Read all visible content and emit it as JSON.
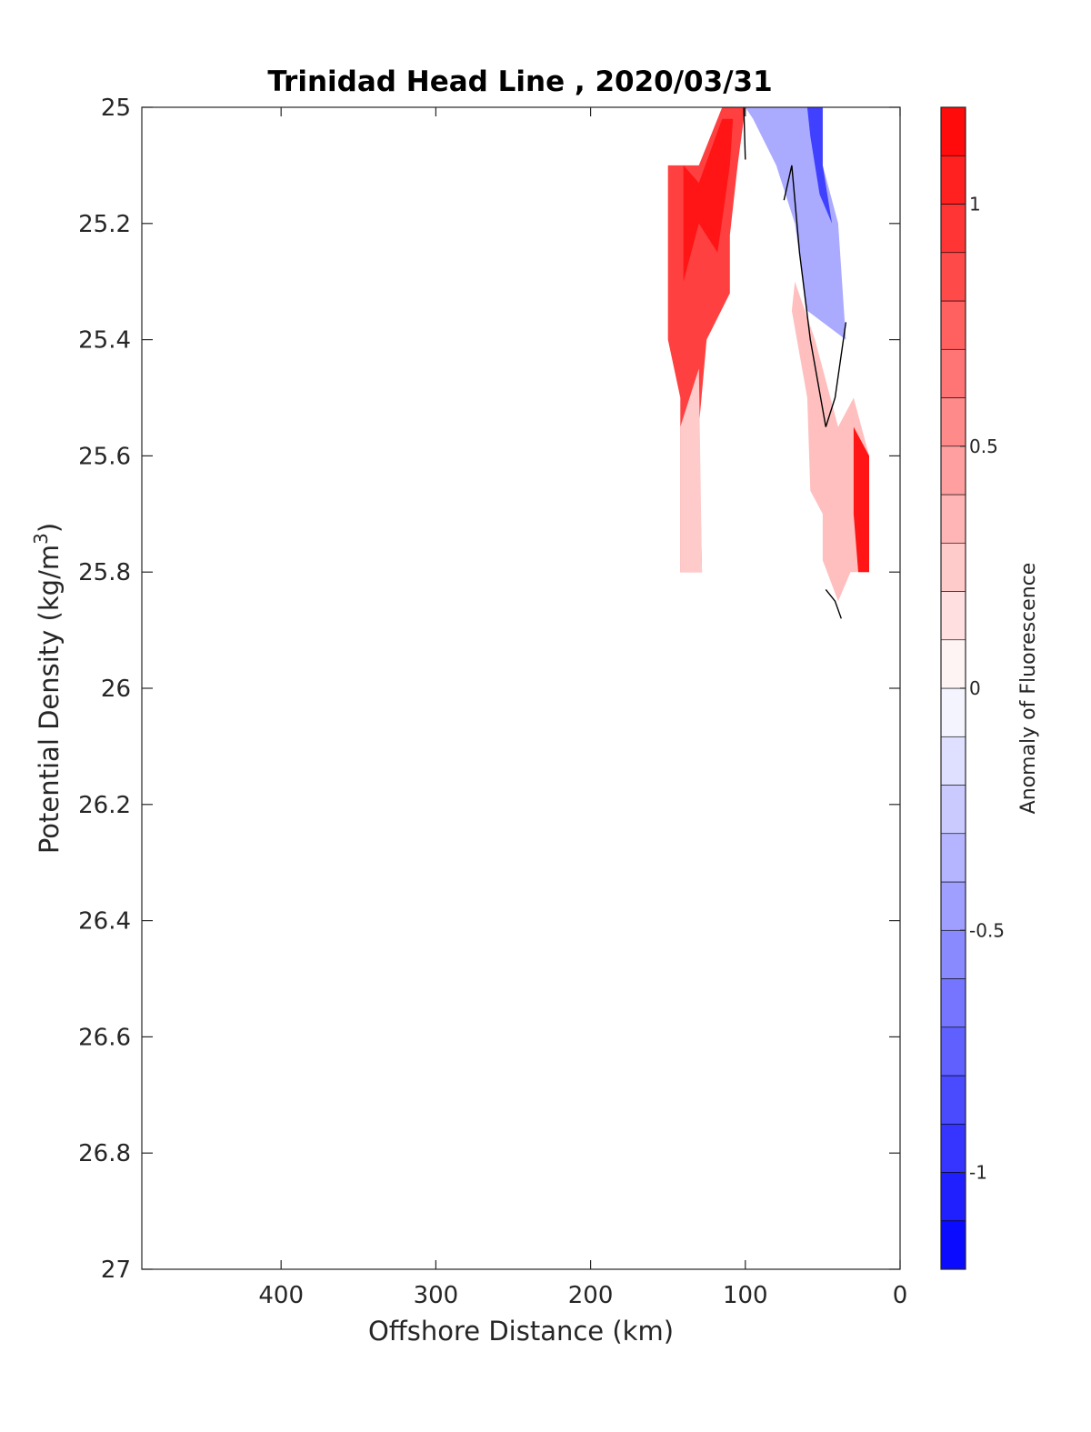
{
  "chart_data": {
    "type": "contour",
    "title": "Trinidad Head Line , 2020/03/31",
    "xlabel": "Offshore Distance (km)",
    "ylabel_main": "Potential Density (kg/m",
    "ylabel_sup": "3",
    "ylabel_tail": ")",
    "x_axis": {
      "lim": [
        490,
        0
      ],
      "reversed": true,
      "ticks": [
        400,
        300,
        200,
        100,
        0
      ],
      "tick_labels": [
        "400",
        "300",
        "200",
        "100",
        "0"
      ]
    },
    "y_axis": {
      "lim": [
        25,
        27
      ],
      "reversed": true,
      "ticks": [
        25,
        25.2,
        25.4,
        25.6,
        25.8,
        26,
        26.2,
        26.4,
        26.6,
        26.8,
        27
      ],
      "tick_labels": [
        "25",
        "25.2",
        "25.4",
        "25.6",
        "25.8",
        "26",
        "26.2",
        "26.4",
        "26.6",
        "26.8",
        "27"
      ]
    },
    "grid": false,
    "colormap": "blue-white-red",
    "colorbar": {
      "label": "Anomaly of Fluorescence",
      "range": [
        -1.2,
        1.2
      ],
      "step": 0.1,
      "ticks": [
        -1,
        -0.5,
        0,
        0.5,
        1
      ],
      "tick_labels": [
        "-1",
        "-0.5",
        "0",
        "0.5",
        "1"
      ],
      "low_color": "#0000ff",
      "mid_color": "#ffffff",
      "high_color": "#ff0000"
    },
    "regions": [
      {
        "name": "offshore-positive-anomaly",
        "level": 0.9,
        "points": [
          [
            150,
            25.1
          ],
          [
            130,
            25.1
          ],
          [
            115,
            25.0
          ],
          [
            100,
            25.0
          ],
          [
            105,
            25.1
          ],
          [
            110,
            25.22
          ],
          [
            110,
            25.32
          ],
          [
            125,
            25.4
          ],
          [
            130,
            25.55
          ],
          [
            128,
            25.8
          ],
          [
            142,
            25.8
          ],
          [
            142,
            25.5
          ],
          [
            150,
            25.4
          ]
        ]
      },
      {
        "name": "offshore-strong-core",
        "level": 1.1,
        "points": [
          [
            140,
            25.1
          ],
          [
            130,
            25.13
          ],
          [
            115,
            25.02
          ],
          [
            108,
            25.02
          ],
          [
            110,
            25.1
          ],
          [
            118,
            25.25
          ],
          [
            130,
            25.2
          ],
          [
            140,
            25.3
          ]
        ]
      },
      {
        "name": "offshore-pink-tail",
        "level": 0.25,
        "points": [
          [
            130,
            25.45
          ],
          [
            128,
            25.8
          ],
          [
            142,
            25.8
          ],
          [
            142,
            25.55
          ]
        ]
      },
      {
        "name": "nearshore-negative-anomaly",
        "level": -0.4,
        "points": [
          [
            100,
            25.0
          ],
          [
            50,
            25.0
          ],
          [
            50,
            25.1
          ],
          [
            40,
            25.2
          ],
          [
            35,
            25.4
          ],
          [
            60,
            25.35
          ],
          [
            68,
            25.2
          ],
          [
            80,
            25.1
          ],
          [
            95,
            25.02
          ]
        ]
      },
      {
        "name": "nearshore-negative-core",
        "level": -0.9,
        "points": [
          [
            60,
            25.0
          ],
          [
            50,
            25.0
          ],
          [
            50,
            25.1
          ],
          [
            44,
            25.2
          ],
          [
            52,
            25.15
          ],
          [
            58,
            25.05
          ]
        ]
      },
      {
        "name": "nearshore-positive-band",
        "level": 0.3,
        "points": [
          [
            70,
            25.35
          ],
          [
            60,
            25.5
          ],
          [
            58,
            25.66
          ],
          [
            50,
            25.7
          ],
          [
            50,
            25.78
          ],
          [
            40,
            25.85
          ],
          [
            32,
            25.8
          ],
          [
            20,
            25.8
          ],
          [
            20,
            25.6
          ],
          [
            30,
            25.5
          ],
          [
            40,
            25.55
          ],
          [
            55,
            25.4
          ],
          [
            68,
            25.3
          ]
        ]
      },
      {
        "name": "nearshore-strong-edge",
        "level": 1.1,
        "points": [
          [
            30,
            25.55
          ],
          [
            20,
            25.6
          ],
          [
            20,
            25.8
          ],
          [
            27,
            25.8
          ],
          [
            30,
            25.7
          ]
        ]
      }
    ],
    "contour_zero_lines": [
      {
        "name": "zero-contour-top",
        "points": [
          [
            101,
            25.0
          ],
          [
            100,
            25.09
          ]
        ]
      },
      {
        "name": "zero-contour-main",
        "points": [
          [
            75,
            25.16
          ],
          [
            70,
            25.1
          ],
          [
            65,
            25.25
          ],
          [
            58,
            25.4
          ],
          [
            48,
            25.55
          ],
          [
            42,
            25.5
          ],
          [
            35,
            25.37
          ]
        ]
      },
      {
        "name": "zero-contour-bottom",
        "points": [
          [
            48,
            25.83
          ],
          [
            42,
            25.85
          ],
          [
            38,
            25.88
          ]
        ]
      }
    ]
  }
}
